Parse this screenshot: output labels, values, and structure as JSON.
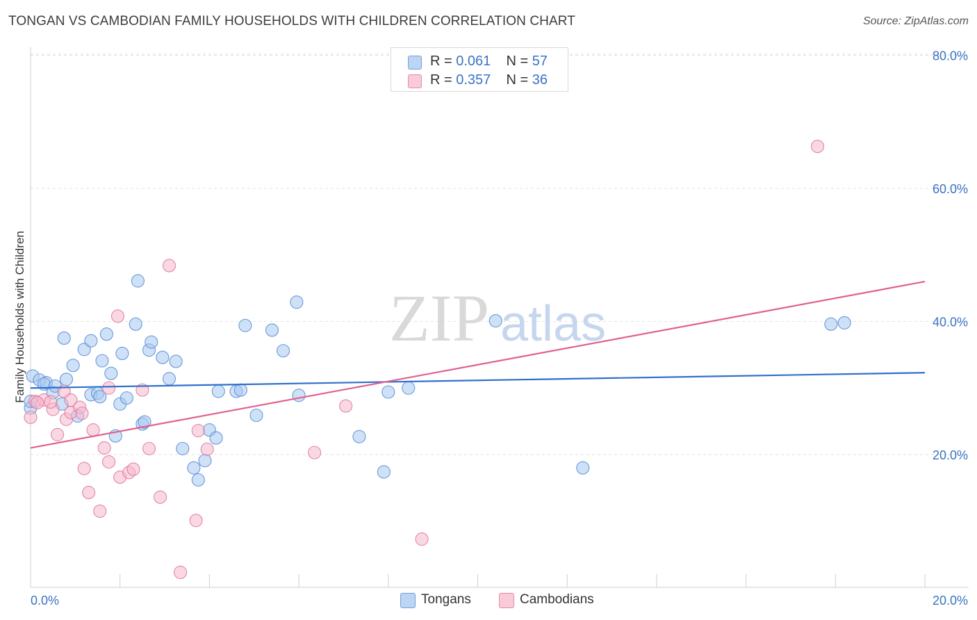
{
  "title": "TONGAN VS CAMBODIAN FAMILY HOUSEHOLDS WITH CHILDREN CORRELATION CHART",
  "source": "Source: ZipAtlas.com",
  "watermark": {
    "zip": "ZIP",
    "atlas": "atlas"
  },
  "legend": {
    "rows": [
      {
        "r_label": "R =",
        "r_value": "0.061",
        "n_label": "N =",
        "n_value": "57",
        "color": "#a8c8f0"
      },
      {
        "r_label": "R =",
        "r_value": "0.357",
        "n_label": "N =",
        "n_value": "36",
        "color": "#f5b8cc"
      }
    ]
  },
  "bottom_legend": [
    {
      "label": "Tongans",
      "color": "#a8c8f0"
    },
    {
      "label": "Cambodians",
      "color": "#f5b8cc"
    }
  ],
  "colors": {
    "tongans_fill": "#a8c8f0",
    "tongans_stroke": "#5b8fd6",
    "tongans_line": "#2f6fcc",
    "cambodians_fill": "#f5b8cc",
    "cambodians_stroke": "#e07a9e",
    "cambodians_line": "#e0608e",
    "axis_text": "#3a72c4",
    "grid": "#e2e2e2"
  },
  "chart_data": {
    "type": "scatter",
    "title": "TONGAN VS CAMBODIAN FAMILY HOUSEHOLDS WITH CHILDREN CORRELATION CHART",
    "xlabel": "",
    "ylabel": "Family Households with Children",
    "xlim": [
      0,
      20
    ],
    "ylim": [
      0,
      82
    ],
    "x_tick_labels": [
      "0.0%",
      "20.0%"
    ],
    "y_ticks": [
      20,
      40,
      60,
      80
    ],
    "y_tick_labels": [
      "20.0%",
      "40.0%",
      "60.0%",
      "80.0%"
    ],
    "grid": true,
    "legend_position": "top-center",
    "series": [
      {
        "name": "Tongans",
        "r": 0.061,
        "n": 57,
        "trend": {
          "x": [
            0,
            20
          ],
          "y": [
            30.0,
            32.3
          ]
        },
        "points": [
          [
            0.0,
            27.0
          ],
          [
            0.05,
            31.8
          ],
          [
            0.2,
            31.2
          ],
          [
            0.35,
            30.8
          ],
          [
            0.3,
            30.6
          ],
          [
            0.5,
            29.3
          ],
          [
            0.55,
            30.3
          ],
          [
            0.7,
            27.6
          ],
          [
            0.75,
            37.5
          ],
          [
            0.8,
            31.3
          ],
          [
            0.95,
            33.4
          ],
          [
            1.05,
            25.8
          ],
          [
            1.2,
            35.8
          ],
          [
            1.35,
            29.0
          ],
          [
            1.35,
            37.1
          ],
          [
            1.5,
            29.2
          ],
          [
            1.55,
            28.7
          ],
          [
            1.6,
            34.1
          ],
          [
            1.7,
            38.1
          ],
          [
            1.8,
            32.2
          ],
          [
            1.9,
            22.8
          ],
          [
            2.0,
            27.6
          ],
          [
            2.05,
            35.2
          ],
          [
            2.15,
            28.5
          ],
          [
            2.35,
            39.6
          ],
          [
            2.4,
            46.1
          ],
          [
            2.5,
            24.6
          ],
          [
            2.55,
            24.9
          ],
          [
            2.65,
            35.7
          ],
          [
            2.7,
            36.9
          ],
          [
            2.95,
            34.6
          ],
          [
            3.1,
            31.4
          ],
          [
            3.25,
            34.0
          ],
          [
            3.4,
            20.9
          ],
          [
            3.65,
            18.0
          ],
          [
            3.75,
            16.2
          ],
          [
            3.9,
            19.1
          ],
          [
            4.0,
            23.7
          ],
          [
            4.15,
            22.5
          ],
          [
            4.2,
            29.5
          ],
          [
            4.6,
            29.5
          ],
          [
            4.7,
            29.7
          ],
          [
            4.8,
            39.4
          ],
          [
            5.05,
            25.9
          ],
          [
            5.4,
            38.7
          ],
          [
            5.65,
            35.6
          ],
          [
            5.95,
            42.9
          ],
          [
            6.0,
            28.9
          ],
          [
            7.35,
            22.7
          ],
          [
            7.9,
            17.4
          ],
          [
            8.0,
            29.4
          ],
          [
            8.45,
            30.0
          ],
          [
            10.4,
            40.1
          ],
          [
            12.35,
            18.0
          ],
          [
            17.9,
            39.6
          ],
          [
            18.2,
            39.8
          ],
          [
            0.0,
            28.0
          ]
        ]
      },
      {
        "name": "Cambodians",
        "r": 0.357,
        "n": 36,
        "trend": {
          "x": [
            0,
            20
          ],
          "y": [
            21.0,
            46.0
          ]
        },
        "points": [
          [
            0.0,
            25.6
          ],
          [
            0.1,
            28.0
          ],
          [
            0.3,
            28.2
          ],
          [
            0.5,
            26.8
          ],
          [
            0.6,
            23.0
          ],
          [
            0.75,
            29.5
          ],
          [
            0.8,
            25.3
          ],
          [
            0.9,
            26.3
          ],
          [
            0.9,
            28.2
          ],
          [
            1.1,
            27.1
          ],
          [
            1.15,
            26.2
          ],
          [
            1.2,
            17.9
          ],
          [
            1.3,
            14.3
          ],
          [
            1.4,
            23.7
          ],
          [
            1.55,
            11.5
          ],
          [
            1.65,
            21.0
          ],
          [
            1.75,
            30.0
          ],
          [
            1.75,
            18.9
          ],
          [
            1.95,
            40.8
          ],
          [
            2.0,
            16.6
          ],
          [
            2.2,
            17.3
          ],
          [
            2.3,
            17.8
          ],
          [
            2.5,
            29.7
          ],
          [
            2.65,
            20.9
          ],
          [
            2.9,
            13.6
          ],
          [
            3.1,
            48.4
          ],
          [
            3.35,
            2.3
          ],
          [
            3.7,
            10.1
          ],
          [
            3.75,
            23.6
          ],
          [
            3.95,
            20.8
          ],
          [
            6.35,
            20.3
          ],
          [
            7.05,
            27.3
          ],
          [
            8.75,
            7.3
          ],
          [
            17.6,
            66.3
          ],
          [
            0.15,
            27.8
          ],
          [
            0.45,
            27.9
          ]
        ]
      }
    ]
  }
}
